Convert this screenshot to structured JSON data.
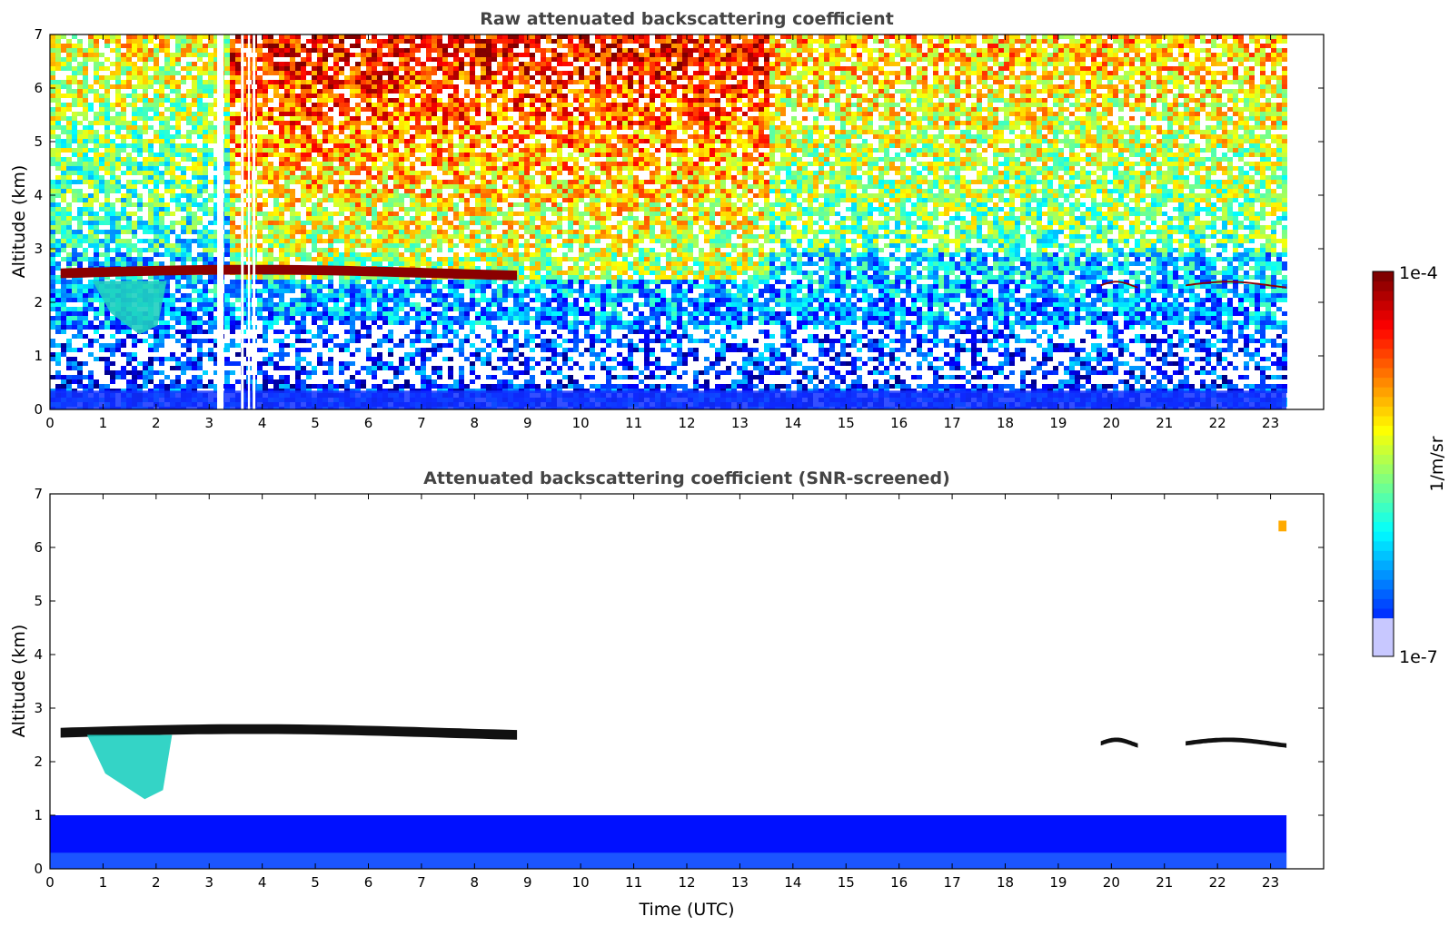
{
  "chart_data": [
    {
      "type": "heatmap",
      "title": "Raw attenuated backscattering coefficient",
      "xlabel": "",
      "ylabel": "Altitude (km)",
      "xlim": [
        0,
        24
      ],
      "ylim": [
        0,
        7
      ],
      "xticks": [
        "0",
        "1",
        "2",
        "3",
        "4",
        "5",
        "6",
        "7",
        "8",
        "9",
        "10",
        "11",
        "12",
        "13",
        "14",
        "15",
        "16",
        "17",
        "18",
        "19",
        "20",
        "21",
        "22",
        "23"
      ],
      "yticks": [
        "0",
        "1",
        "2",
        "3",
        "4",
        "5",
        "6",
        "7"
      ],
      "data_end_hour": 23.3,
      "missing_data_hours": [
        [
          3.15,
          3.27
        ],
        [
          3.6,
          3.65
        ],
        [
          3.73,
          3.77
        ],
        [
          3.82,
          3.87
        ]
      ],
      "features": [
        {
          "kind": "cloud_layer",
          "x_range": [
            0.2,
            8.8
          ],
          "altitude_km": [
            2.45,
            2.7
          ],
          "level": "1e-4"
        },
        {
          "kind": "cloud_layer",
          "x_range": [
            19.8,
            20.5
          ],
          "altitude_km": [
            2.3,
            2.4
          ],
          "level": "1e-4"
        },
        {
          "kind": "cloud_layer",
          "x_range": [
            21.4,
            23.3
          ],
          "altitude_km": [
            2.3,
            2.4
          ],
          "level": "1e-4"
        },
        {
          "kind": "precipitation_virga",
          "x_range": [
            0.8,
            2.2
          ],
          "altitude_km": [
            1.4,
            2.4
          ],
          "level": "~1e-5"
        },
        {
          "kind": "boundary_layer",
          "x_range": [
            0,
            23.3
          ],
          "altitude_km": [
            0,
            0.4
          ],
          "level": "~1e-6"
        },
        {
          "kind": "noisy_background_high",
          "x_range": [
            3.3,
            13.5
          ],
          "altitude_km": [
            3,
            7
          ],
          "level": "~3e-5"
        }
      ]
    },
    {
      "type": "heatmap",
      "title": "Attenuated backscattering coefficient (SNR-screened)",
      "xlabel": "Time (UTC)",
      "ylabel": "Altitude (km)",
      "xlim": [
        0,
        24
      ],
      "ylim": [
        0,
        7
      ],
      "xticks": [
        "0",
        "1",
        "2",
        "3",
        "4",
        "5",
        "6",
        "7",
        "8",
        "9",
        "10",
        "11",
        "12",
        "13",
        "14",
        "15",
        "16",
        "17",
        "18",
        "19",
        "20",
        "21",
        "22",
        "23"
      ],
      "yticks": [
        "0",
        "1",
        "2",
        "3",
        "4",
        "5",
        "6",
        "7"
      ],
      "data_end_hour": 23.3,
      "features": [
        {
          "kind": "cloud_layer",
          "x_range": [
            0.2,
            8.8
          ],
          "altitude_km": [
            2.45,
            2.7
          ],
          "level": "1e-4"
        },
        {
          "kind": "cloud_layer",
          "x_range": [
            19.8,
            20.5
          ],
          "altitude_km": [
            2.3,
            2.45
          ],
          "level": "1e-4"
        },
        {
          "kind": "cloud_layer",
          "x_range": [
            21.4,
            23.3
          ],
          "altitude_km": [
            2.3,
            2.45
          ],
          "level": "1e-4"
        },
        {
          "kind": "precipitation_virga",
          "x_range": [
            0.7,
            2.3
          ],
          "altitude_km": [
            1.3,
            2.5
          ],
          "level": "~1e-5"
        },
        {
          "kind": "boundary_layer",
          "x_range": [
            0,
            23.3
          ],
          "altitude_km": [
            0,
            1.0
          ],
          "level": "~1e-6"
        },
        {
          "kind": "isolated_echo",
          "x_range": [
            23.15,
            23.3
          ],
          "altitude_km": [
            6.3,
            6.5
          ],
          "level": "~5e-5"
        }
      ]
    }
  ],
  "colorbar": {
    "max_label": "1e-4",
    "min_label": "1e-7",
    "unit": "1/m/sr",
    "colormap": "jet",
    "colors": [
      "#eeeeff",
      "#0000ff",
      "#00aaff",
      "#00eeee",
      "#44ee88",
      "#ccee22",
      "#ffaa00",
      "#ff3300",
      "#770000"
    ]
  }
}
